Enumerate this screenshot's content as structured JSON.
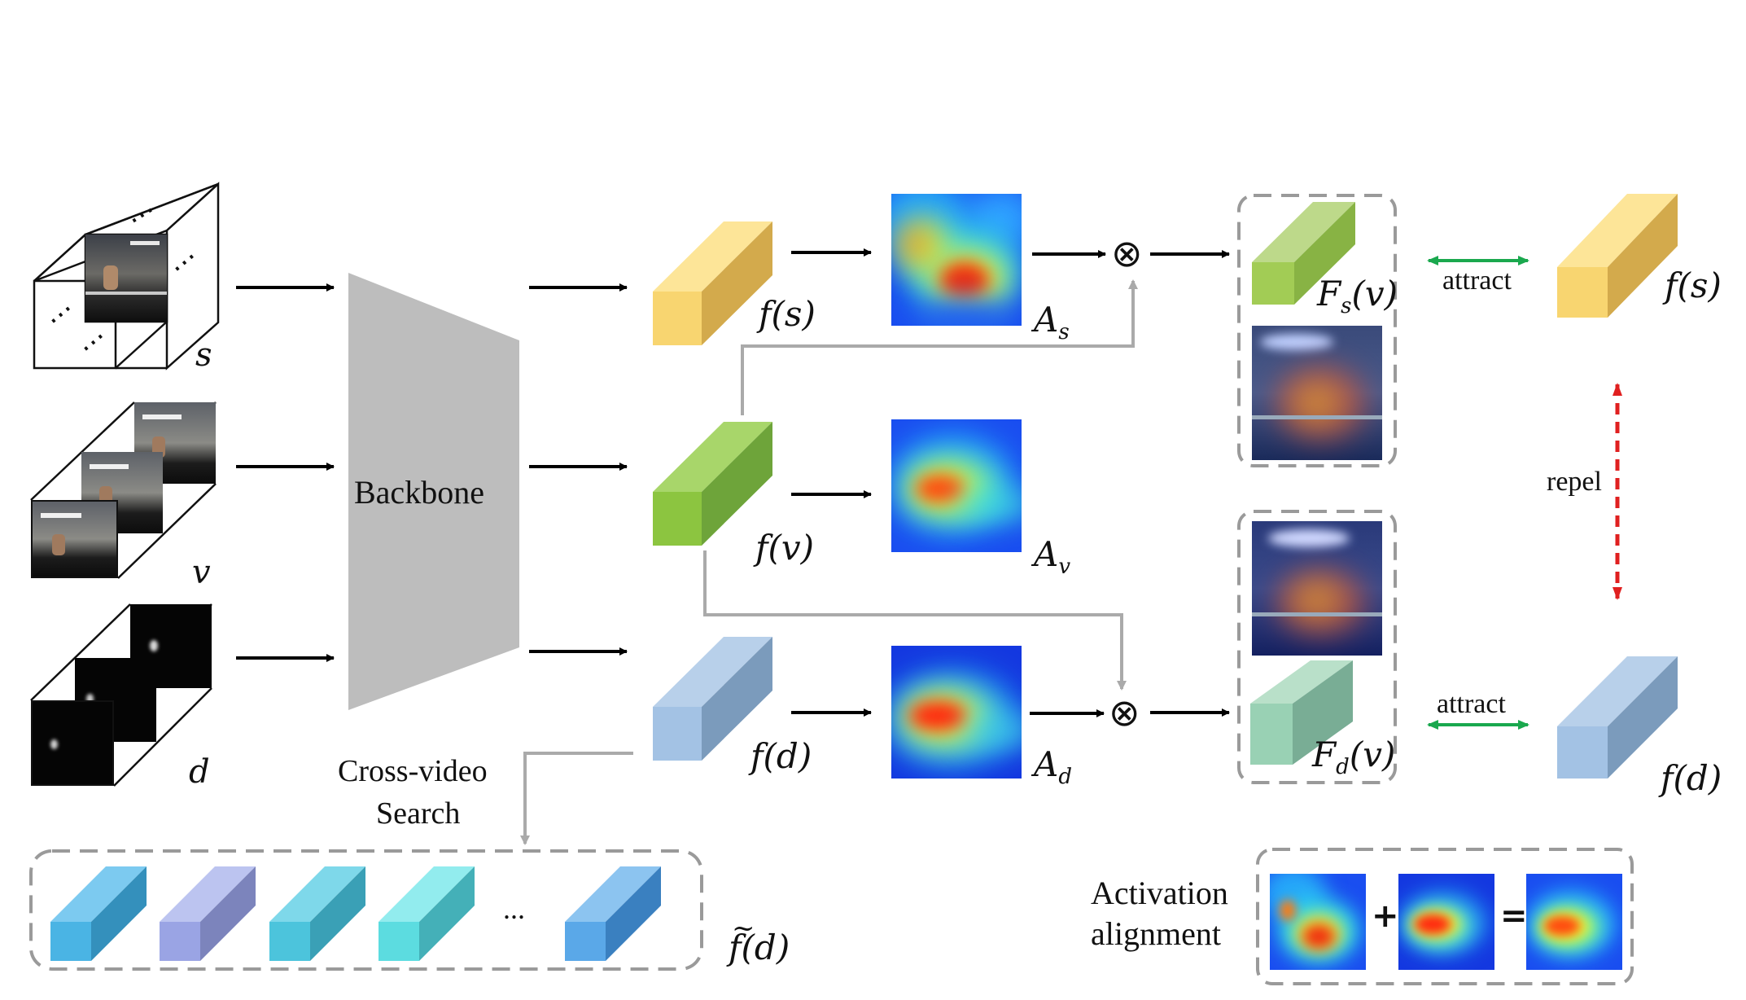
{
  "backbone_label": "Backbone",
  "inputs": {
    "s": "s",
    "v": "v",
    "d": "d",
    "ellipsis": "⋯"
  },
  "features": {
    "fs": "f(s)",
    "fv": "f(v)",
    "fd": "f(d)",
    "fs_target": "f(s)",
    "fd_target": "f(d)",
    "fd_bank": "f(d)",
    "fd_bank_tilde": "~"
  },
  "activations": {
    "As_main": "A",
    "As_sub": "s",
    "Av_main": "A",
    "Av_sub": "v",
    "Ad_main": "A",
    "Ad_sub": "d"
  },
  "fused": {
    "Fs_main": "F",
    "Fs_sub": "s",
    "Fs_arg": "(v)",
    "Fd_main": "F",
    "Fd_sub": "d",
    "Fd_arg": "(v)"
  },
  "otimes": "⊗",
  "relations": {
    "attract_top": "attract",
    "attract_bottom": "attract",
    "repel": "repel"
  },
  "search": {
    "line1": "Cross-video",
    "line2": "Search"
  },
  "bank_ellipsis": "...",
  "alignment": {
    "line1": "Activation",
    "line2": "alignment",
    "plus": "+",
    "equals": "="
  },
  "colors": {
    "yellow": "#f5c85e",
    "green": "#8cc540",
    "blue": "#9bbce0",
    "arrow": "#000000",
    "connector": "#aaaaaa",
    "attract": "#1aa84e",
    "repel": "#e02020",
    "backbone": "#bdbdbd",
    "dash_box": "#9a9a9a"
  },
  "bank_colors": [
    "#4ab4e4",
    "#9aa4e4",
    "#4cc4dc",
    "#5cdce0",
    "#5aa8e8"
  ]
}
